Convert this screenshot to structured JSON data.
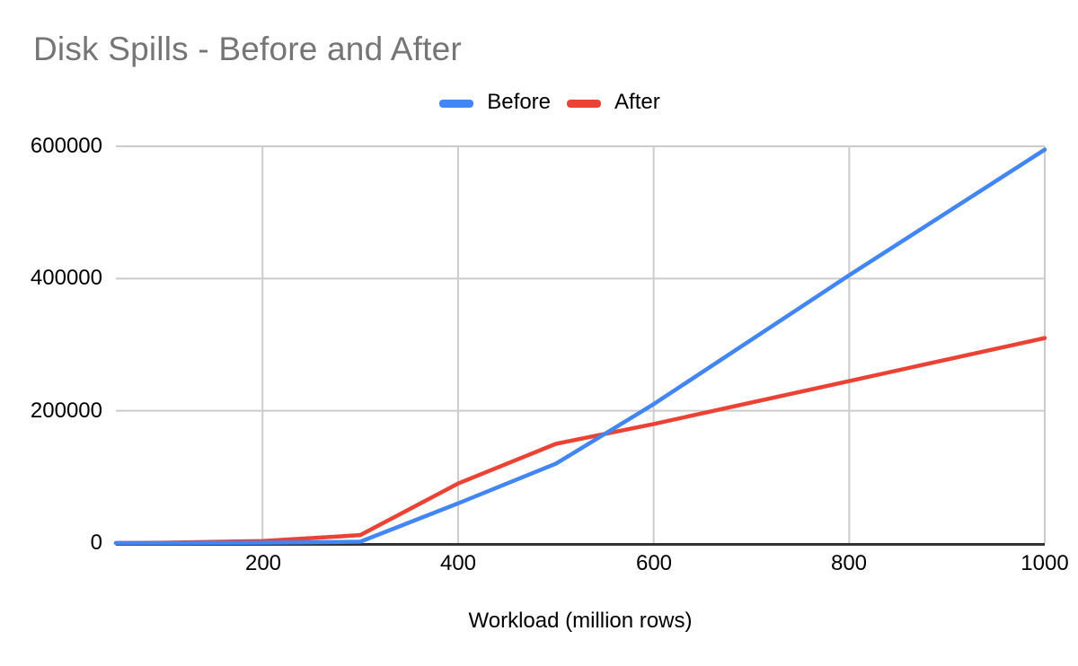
{
  "style": {
    "background": "#ffffff",
    "title_color": "#757575",
    "text_color": "#000000",
    "gridline_color": "#cccccc",
    "axis_line_color": "#333333"
  },
  "legend": [
    {
      "label": "Before",
      "color": "#4285f4"
    },
    {
      "label": "After",
      "color": "#ea4335"
    }
  ],
  "chart_data": {
    "type": "line",
    "title": "Disk Spills - Before and After",
    "xlabel": "Workload (million rows)",
    "ylabel": "",
    "x": [
      50,
      100,
      200,
      300,
      400,
      500,
      600,
      800,
      1000
    ],
    "series": [
      {
        "name": "Before",
        "color": "#4285f4",
        "values": [
          0,
          0,
          500,
          2000,
          60000,
          120000,
          210000,
          405000,
          595000
        ]
      },
      {
        "name": "After",
        "color": "#ea4335",
        "values": [
          0,
          500,
          3000,
          12000,
          90000,
          150000,
          180000,
          245000,
          310000
        ]
      }
    ],
    "xlim": [
      50,
      1000
    ],
    "ylim": [
      0,
      600000
    ],
    "x_ticks": [
      200,
      400,
      600,
      800,
      1000
    ],
    "y_ticks": [
      0,
      200000,
      400000,
      600000
    ],
    "x_tick_labels": [
      "200",
      "400",
      "600",
      "800",
      "1000"
    ],
    "y_tick_labels": [
      "0",
      "200000",
      "400000",
      "600000"
    ],
    "grid": true,
    "legend_position": "top-center"
  }
}
